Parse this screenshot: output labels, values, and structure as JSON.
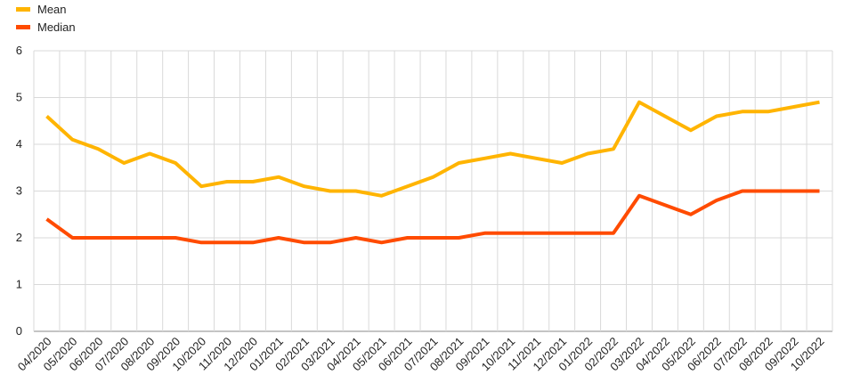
{
  "chart_data": {
    "type": "line",
    "title": "",
    "xlabel": "",
    "ylabel": "",
    "ylim": [
      0,
      6
    ],
    "yticks": [
      0,
      1,
      2,
      3,
      4,
      5,
      6
    ],
    "grid": "vertical and horizontal",
    "legend_placement": "top-left",
    "categories": [
      "04/2020",
      "05/2020",
      "06/2020",
      "07/2020",
      "08/2020",
      "09/2020",
      "10/2020",
      "11/2020",
      "12/2020",
      "01/2021",
      "02/2021",
      "03/2021",
      "04/2021",
      "05/2021",
      "06/2021",
      "07/2021",
      "08/2021",
      "09/2021",
      "10/2021",
      "11/2021",
      "12/2021",
      "01/2022",
      "02/2022",
      "03/2022",
      "04/2022",
      "05/2022",
      "06/2022",
      "07/2022",
      "08/2022",
      "09/2022",
      "10/2022"
    ],
    "series": [
      {
        "name": "Mean",
        "color": "#FFB400",
        "values": [
          4.6,
          4.1,
          3.9,
          3.6,
          3.8,
          3.6,
          3.1,
          3.2,
          3.2,
          3.3,
          3.1,
          3.0,
          3.0,
          2.9,
          3.1,
          3.3,
          3.6,
          3.7,
          3.8,
          3.7,
          3.6,
          3.8,
          3.9,
          4.9,
          4.6,
          4.3,
          4.6,
          4.7,
          4.7,
          4.8,
          4.9
        ]
      },
      {
        "name": "Median",
        "color": "#FF4B00",
        "values": [
          2.4,
          2.0,
          2.0,
          2.0,
          2.0,
          2.0,
          1.9,
          1.9,
          1.9,
          2.0,
          1.9,
          1.9,
          2.0,
          1.9,
          2.0,
          2.0,
          2.0,
          2.1,
          2.1,
          2.1,
          2.1,
          2.1,
          2.1,
          2.9,
          2.7,
          2.5,
          2.8,
          3.0,
          3.0,
          3.0,
          3.0
        ]
      }
    ]
  }
}
